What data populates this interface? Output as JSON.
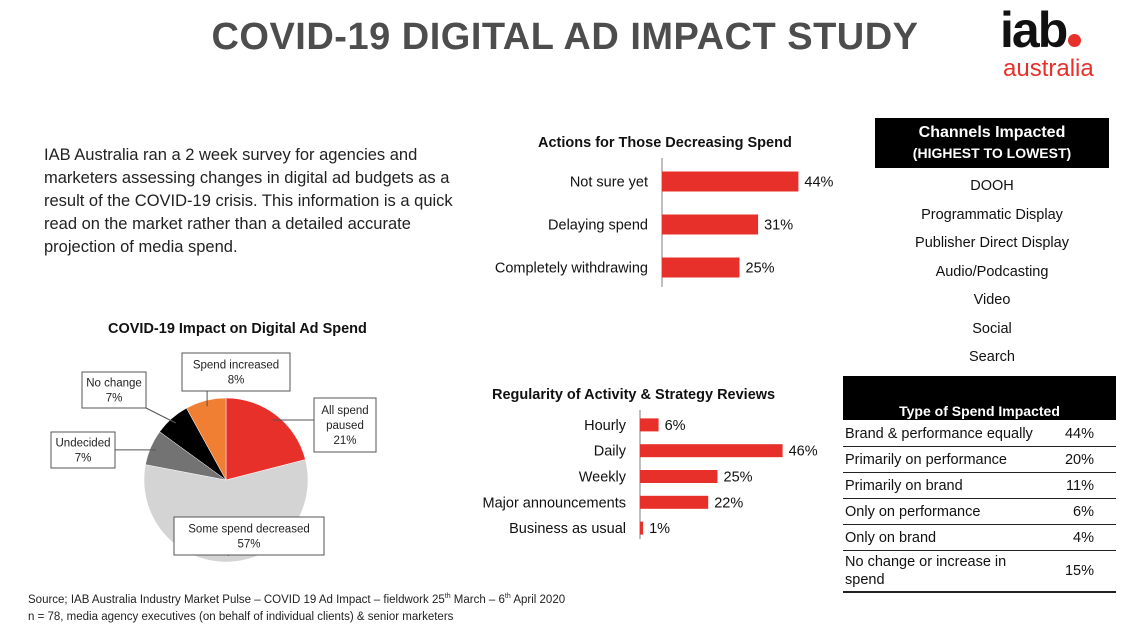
{
  "title": "COVID-19 DIGITAL AD IMPACT STUDY",
  "logo": {
    "main": "iab",
    "sub": "australia",
    "brand_color": "#e8302a"
  },
  "intro": "IAB Australia ran a 2 week survey for agencies and marketers assessing changes in digital ad budgets as a result of the COVID-19 crisis. This information is a quick read on the market rather than a detailed accurate projection of media spend.",
  "channels": {
    "title": "Channels Impacted",
    "subtitle": "(HIGHEST TO LOWEST)",
    "items": [
      "DOOH",
      "Programmatic Display",
      "Publisher Direct Display",
      "Audio/Podcasting",
      "Video",
      "Social",
      "Search"
    ]
  },
  "spend_type": {
    "title": "Type of Spend Impacted",
    "rows": [
      {
        "label": "Brand & performance equally",
        "value": "44%"
      },
      {
        "label": "Primarily on performance",
        "value": "20%"
      },
      {
        "label": "Primarily on brand",
        "value": "11%"
      },
      {
        "label": "Only on performance",
        "value": "6%"
      },
      {
        "label": "Only on brand",
        "value": "4%"
      },
      {
        "label": "No change or increase in spend",
        "value": "15%"
      }
    ]
  },
  "source": {
    "line1_a": "Source; IAB Australia Industry Market Pulse – COVID 19 Ad Impact – fieldwork 25",
    "line1_sup1": "th",
    "line1_b": " March – 6",
    "line1_sup2": "th",
    "line1_c": " April 2020",
    "line2": "n = 78, media agency executives (on behalf of individual clients) & senior marketers"
  },
  "chart_data": [
    {
      "type": "pie",
      "title": "COVID-19 Impact on Digital Ad Spend",
      "categories": [
        "All spend paused",
        "Some spend decreased",
        "Undecided",
        "No change",
        "Spend increased"
      ],
      "values": [
        21,
        57,
        7,
        7,
        8
      ],
      "value_labels": [
        "21%",
        "57%",
        "7%",
        "7%",
        "8%"
      ],
      "colors": [
        "#e8302a",
        "#d4d4d4",
        "#737373",
        "#000000",
        "#f07f33"
      ]
    },
    {
      "type": "bar",
      "orientation": "horizontal",
      "title": "Actions for Those Decreasing Spend",
      "categories": [
        "Not sure yet",
        "Delaying spend",
        "Completely withdrawing"
      ],
      "values": [
        44,
        31,
        25
      ],
      "value_labels": [
        "44%",
        "31%",
        "25%"
      ],
      "color": "#e8302a"
    },
    {
      "type": "bar",
      "orientation": "horizontal",
      "title": "Regularity of Activity & Strategy Reviews",
      "categories": [
        "Hourly",
        "Daily",
        "Weekly",
        "Major announcements",
        "Business as usual"
      ],
      "values": [
        6,
        46,
        25,
        22,
        1
      ],
      "value_labels": [
        "6%",
        "46%",
        "25%",
        "22%",
        "1%"
      ],
      "color": "#e8302a"
    }
  ]
}
